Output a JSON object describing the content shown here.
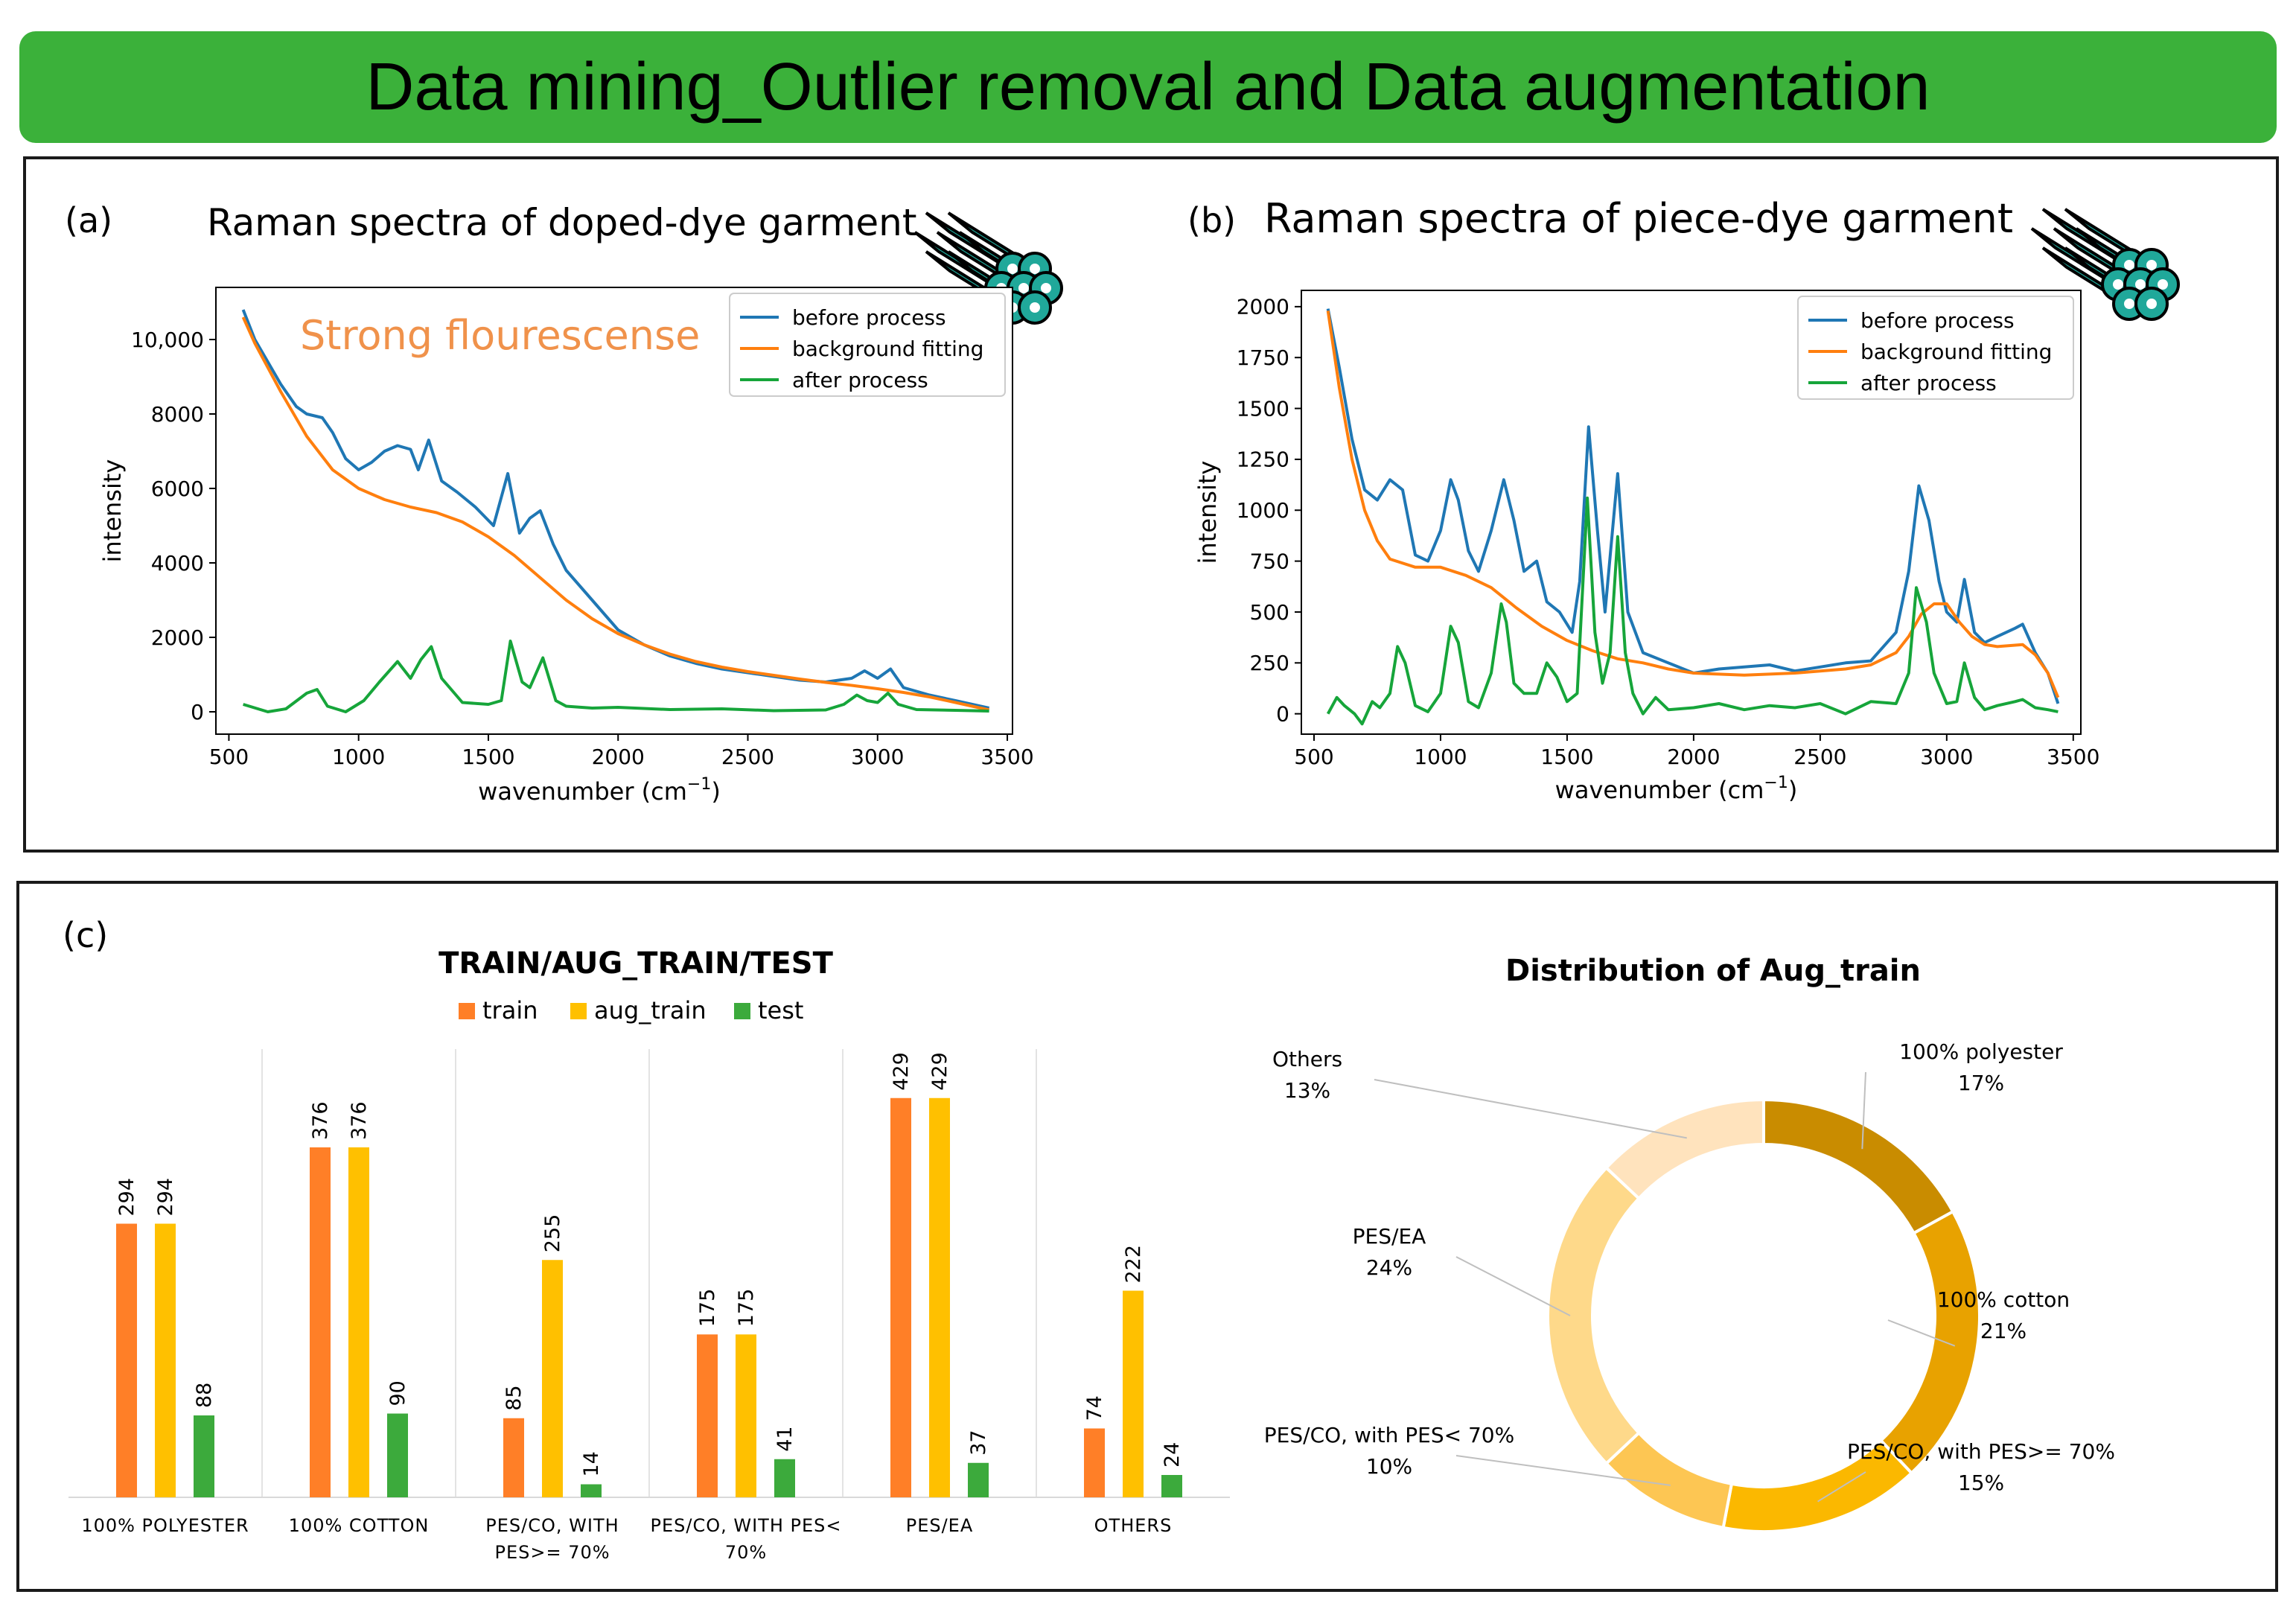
{
  "banner": {
    "title": "Data mining_Outlier removal and Data augmentation"
  },
  "colors": {
    "banner": "#3bb13a",
    "before": "#1f77b4",
    "background": "#ff7f0e",
    "after": "#16a53a",
    "train": "#ff7f27",
    "aug_train": "#ffc000",
    "test": "#3caa3c",
    "fiber": "#20a89a"
  },
  "chart_data": [
    {
      "type": "line",
      "panel_label": "(a)",
      "title": "Raman spectra of doped-dye garment",
      "annotation": "Strong flourescense",
      "xlabel": "wavenumber (cm",
      "xlabel_sup": "−1",
      "xlabel_close": ")",
      "ylabel": "intensity",
      "xlim": [
        450,
        3520
      ],
      "ylim": [
        -600,
        11400
      ],
      "xticks": [
        500,
        1000,
        1500,
        2000,
        2500,
        3000,
        3500
      ],
      "xtick_labels": [
        "500",
        "1000",
        "1500",
        "2000",
        "2500",
        "3000",
        "3500"
      ],
      "yticks": [
        0,
        2000,
        4000,
        6000,
        8000,
        10000
      ],
      "ytick_labels": [
        "0",
        "2000",
        "4000",
        "6000",
        "8000",
        "10,000"
      ],
      "legend": [
        "before process",
        "background fitting",
        "after process"
      ],
      "series": [
        {
          "name": "before process",
          "x": [
            555,
            600,
            650,
            700,
            760,
            800,
            860,
            900,
            950,
            1000,
            1050,
            1100,
            1150,
            1200,
            1230,
            1270,
            1320,
            1380,
            1450,
            1520,
            1575,
            1620,
            1660,
            1700,
            1750,
            1800,
            1900,
            2000,
            2100,
            2200,
            2300,
            2400,
            2500,
            2600,
            2700,
            2800,
            2900,
            2950,
            3000,
            3050,
            3100,
            3200,
            3300,
            3430
          ],
          "y": [
            10800,
            10000,
            9400,
            8800,
            8200,
            8000,
            7900,
            7500,
            6800,
            6500,
            6700,
            7000,
            7150,
            7050,
            6500,
            7300,
            6200,
            5900,
            5500,
            5000,
            6400,
            4800,
            5200,
            5400,
            4500,
            3800,
            3000,
            2200,
            1800,
            1500,
            1300,
            1150,
            1050,
            950,
            850,
            800,
            900,
            1100,
            900,
            1150,
            650,
            450,
            300,
            100
          ]
        },
        {
          "name": "background fitting",
          "x": [
            555,
            600,
            700,
            800,
            900,
            1000,
            1100,
            1200,
            1300,
            1400,
            1500,
            1600,
            1700,
            1800,
            1900,
            2000,
            2100,
            2200,
            2300,
            2400,
            2500,
            2600,
            2700,
            2800,
            2900,
            3000,
            3100,
            3200,
            3300,
            3430
          ],
          "y": [
            10600,
            9900,
            8600,
            7400,
            6500,
            6000,
            5700,
            5500,
            5350,
            5100,
            4700,
            4200,
            3600,
            3000,
            2500,
            2100,
            1800,
            1550,
            1350,
            1200,
            1080,
            980,
            880,
            790,
            710,
            620,
            520,
            400,
            250,
            50
          ]
        },
        {
          "name": "after process",
          "x": [
            555,
            650,
            720,
            800,
            840,
            880,
            950,
            1020,
            1080,
            1150,
            1200,
            1240,
            1280,
            1320,
            1400,
            1500,
            1550,
            1585,
            1630,
            1660,
            1710,
            1760,
            1800,
            1900,
            2000,
            2200,
            2400,
            2600,
            2800,
            2870,
            2920,
            2960,
            3000,
            3040,
            3080,
            3150,
            3300,
            3430
          ],
          "y": [
            200,
            0,
            80,
            500,
            600,
            150,
            0,
            300,
            800,
            1350,
            900,
            1400,
            1750,
            900,
            250,
            200,
            300,
            1900,
            800,
            650,
            1450,
            300,
            150,
            100,
            120,
            60,
            80,
            30,
            50,
            200,
            450,
            300,
            250,
            500,
            200,
            60,
            40,
            20
          ]
        }
      ]
    },
    {
      "type": "line",
      "panel_label": "(b)",
      "title": "Raman spectra of piece-dye garment",
      "xlabel": "wavenumber (cm",
      "xlabel_sup": "−1",
      "xlabel_close": ")",
      "ylabel": "intensity",
      "xlim": [
        450,
        3530
      ],
      "ylim": [
        -100,
        2080
      ],
      "xticks": [
        500,
        1000,
        1500,
        2000,
        2500,
        3000,
        3500
      ],
      "xtick_labels": [
        "500",
        "1000",
        "1500",
        "2000",
        "2500",
        "3000",
        "3500"
      ],
      "yticks": [
        0,
        250,
        500,
        750,
        1000,
        1250,
        1500,
        1750,
        2000
      ],
      "ytick_labels": [
        "0",
        "250",
        "500",
        "750",
        "1000",
        "1250",
        "1500",
        "1750",
        "2000"
      ],
      "legend": [
        "before process",
        "background fitting",
        "after process"
      ],
      "series": [
        {
          "name": "before process",
          "x": [
            555,
            600,
            650,
            700,
            750,
            800,
            850,
            900,
            950,
            1000,
            1040,
            1070,
            1110,
            1150,
            1200,
            1250,
            1290,
            1330,
            1380,
            1420,
            1470,
            1520,
            1550,
            1585,
            1620,
            1650,
            1700,
            1740,
            1800,
            1900,
            2000,
            2100,
            2200,
            2300,
            2400,
            2500,
            2600,
            2700,
            2800,
            2850,
            2890,
            2930,
            2970,
            3000,
            3040,
            3070,
            3110,
            3150,
            3200,
            3270,
            3300,
            3350,
            3400,
            3440
          ],
          "y": [
            1990,
            1700,
            1350,
            1100,
            1050,
            1150,
            1100,
            780,
            750,
            900,
            1150,
            1050,
            800,
            700,
            900,
            1150,
            950,
            700,
            750,
            550,
            500,
            400,
            650,
            1410,
            900,
            500,
            1180,
            500,
            300,
            250,
            200,
            220,
            230,
            240,
            210,
            230,
            250,
            260,
            400,
            700,
            1120,
            950,
            650,
            500,
            450,
            660,
            400,
            350,
            380,
            420,
            440,
            300,
            200,
            50
          ]
        },
        {
          "name": "background fitting",
          "x": [
            555,
            600,
            650,
            700,
            750,
            800,
            900,
            1000,
            1100,
            1200,
            1300,
            1400,
            1500,
            1600,
            1700,
            1800,
            1900,
            2000,
            2200,
            2400,
            2600,
            2700,
            2800,
            2850,
            2900,
            2950,
            3000,
            3050,
            3100,
            3150,
            3200,
            3300,
            3350,
            3400,
            3440
          ],
          "y": [
            1980,
            1600,
            1250,
            1000,
            850,
            760,
            720,
            720,
            680,
            620,
            520,
            430,
            360,
            310,
            270,
            250,
            220,
            200,
            190,
            200,
            220,
            240,
            300,
            380,
            490,
            540,
            540,
            450,
            380,
            340,
            330,
            340,
            290,
            200,
            80
          ]
        },
        {
          "name": "after process",
          "x": [
            555,
            590,
            620,
            660,
            690,
            730,
            760,
            800,
            830,
            860,
            900,
            950,
            1000,
            1040,
            1070,
            1110,
            1150,
            1200,
            1240,
            1260,
            1290,
            1330,
            1380,
            1420,
            1460,
            1500,
            1540,
            1580,
            1610,
            1640,
            1670,
            1700,
            1730,
            1760,
            1800,
            1850,
            1900,
            2000,
            2100,
            2200,
            2300,
            2400,
            2500,
            2600,
            2700,
            2800,
            2850,
            2880,
            2920,
            2950,
            3000,
            3040,
            3070,
            3110,
            3150,
            3200,
            3270,
            3300,
            3350,
            3400,
            3440
          ],
          "y": [
            0,
            80,
            40,
            0,
            -50,
            60,
            30,
            100,
            330,
            250,
            40,
            10,
            100,
            430,
            350,
            60,
            30,
            200,
            540,
            450,
            150,
            100,
            100,
            250,
            180,
            60,
            100,
            1060,
            400,
            150,
            300,
            870,
            300,
            100,
            0,
            80,
            20,
            30,
            50,
            20,
            40,
            30,
            50,
            0,
            60,
            50,
            200,
            620,
            450,
            200,
            50,
            60,
            250,
            80,
            20,
            40,
            60,
            70,
            30,
            20,
            10
          ]
        }
      ]
    },
    {
      "type": "bar",
      "panel_label": "(c)",
      "title": "TRAIN/AUG_TRAIN/TEST",
      "categories": [
        "100% POLYESTER",
        "100% COTTON",
        "PES/CO, WITH PES>= 70%",
        "PES/CO, WITH PES< 70%",
        "PES/EA",
        "OTHERS"
      ],
      "category_lines": [
        [
          "100% POLYESTER"
        ],
        [
          "100% COTTON"
        ],
        [
          "PES/CO, WITH",
          "PES>= 70%"
        ],
        [
          "PES/CO, WITH PES<",
          "70%"
        ],
        [
          "PES/EA"
        ],
        [
          "OTHERS"
        ]
      ],
      "ylim": [
        0,
        480
      ],
      "series": [
        {
          "name": "train",
          "values": [
            294,
            376,
            85,
            175,
            429,
            74
          ]
        },
        {
          "name": "aug_train",
          "values": [
            294,
            376,
            255,
            175,
            429,
            222
          ]
        },
        {
          "name": "test",
          "values": [
            88,
            90,
            14,
            41,
            37,
            24
          ]
        }
      ]
    },
    {
      "type": "pie",
      "variant": "donut",
      "title": "Distribution of Aug_train",
      "slices": [
        {
          "label": "100% polyester",
          "value": 17,
          "pct": "17%",
          "color": "#c98c00"
        },
        {
          "label": "100% cotton",
          "value": 21,
          "pct": "21%",
          "color": "#e8a200"
        },
        {
          "label": "PES/CO, with PES>= 70%",
          "value": 15,
          "pct": "15%",
          "color": "#fbb800"
        },
        {
          "label": "PES/CO, with PES< 70%",
          "value": 10,
          "pct": "10%",
          "color": "#fdc653"
        },
        {
          "label": "PES/EA",
          "value": 24,
          "pct": "24%",
          "color": "#fed98a"
        },
        {
          "label": "Others",
          "value": 13,
          "pct": "13%",
          "color": "#ffe3bd"
        }
      ]
    }
  ]
}
